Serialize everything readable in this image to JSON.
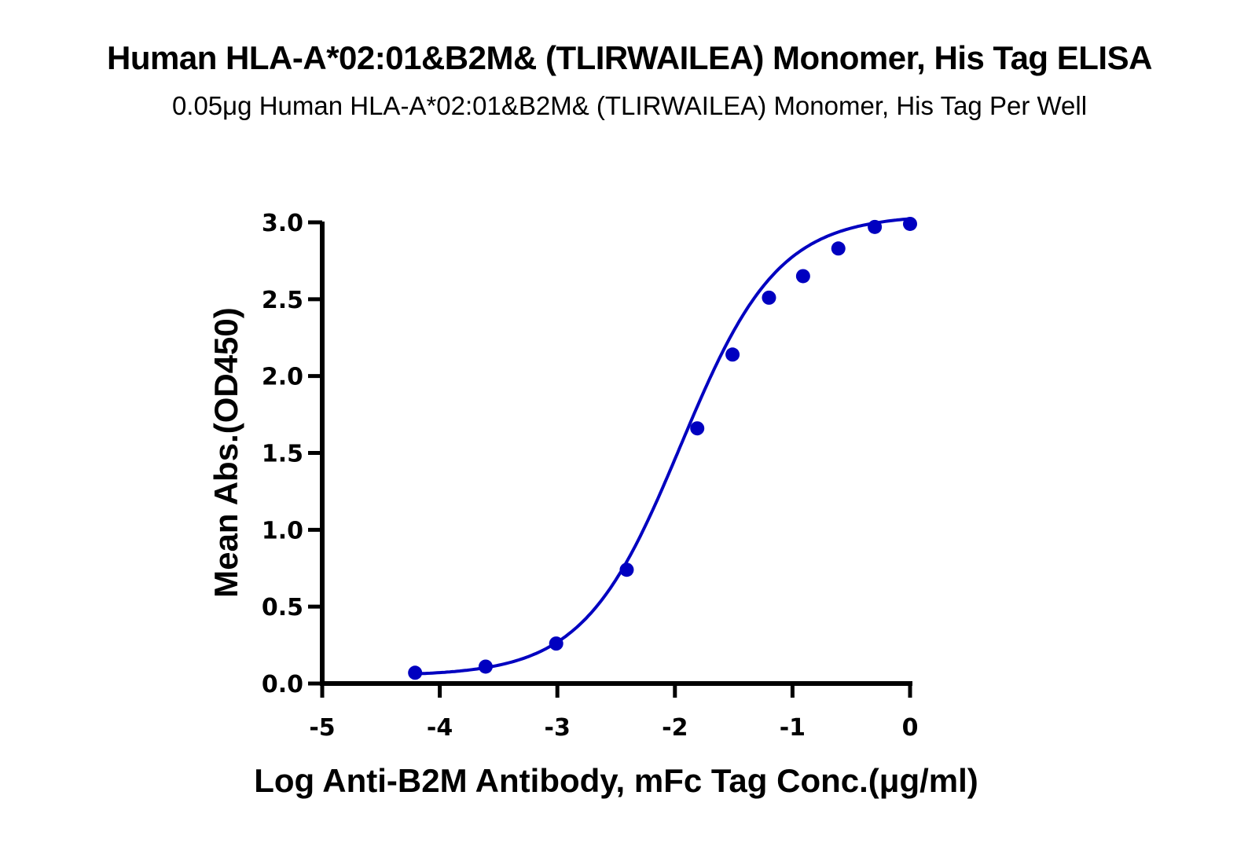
{
  "chart_data": {
    "type": "scatter",
    "title": "Human HLA-A*02:01&B2M& (TLIRWAILEA) Monomer, His Tag ELISA",
    "subtitle": "0.05μg Human HLA-A*02:01&B2M& (TLIRWAILEA) Monomer, His Tag Per Well",
    "xlabel": "Log Anti-B2M Antibody, mFc Tag Conc.(μg/ml)",
    "ylabel": "Mean Abs.(OD450)",
    "xlim": [
      -5,
      0
    ],
    "ylim": [
      0,
      3.0
    ],
    "x_ticks": [
      "-5",
      "-4",
      "-3",
      "-2",
      "-1",
      "0"
    ],
    "y_ticks": [
      "0.0",
      "0.5",
      "1.0",
      "1.5",
      "2.0",
      "2.5",
      "3.0"
    ],
    "grid": false,
    "legend": null,
    "series": [
      {
        "name": "Mean Abs.(OD450)",
        "color": "#0000C0",
        "marker": "circle",
        "fit": "4-parameter logistic (sigmoidal)",
        "x": [
          -4.21,
          -3.61,
          -3.01,
          -2.41,
          -1.81,
          -1.51,
          -1.2,
          -0.91,
          -0.61,
          -0.3,
          0.0
        ],
        "y": [
          0.07,
          0.11,
          0.26,
          0.74,
          1.66,
          2.14,
          2.51,
          2.65,
          2.83,
          2.97,
          2.99
        ]
      }
    ],
    "fit_curve": {
      "bottom": 0.05,
      "top": 3.05,
      "log_ec50": -1.95,
      "hill_slope": 1.05
    }
  }
}
